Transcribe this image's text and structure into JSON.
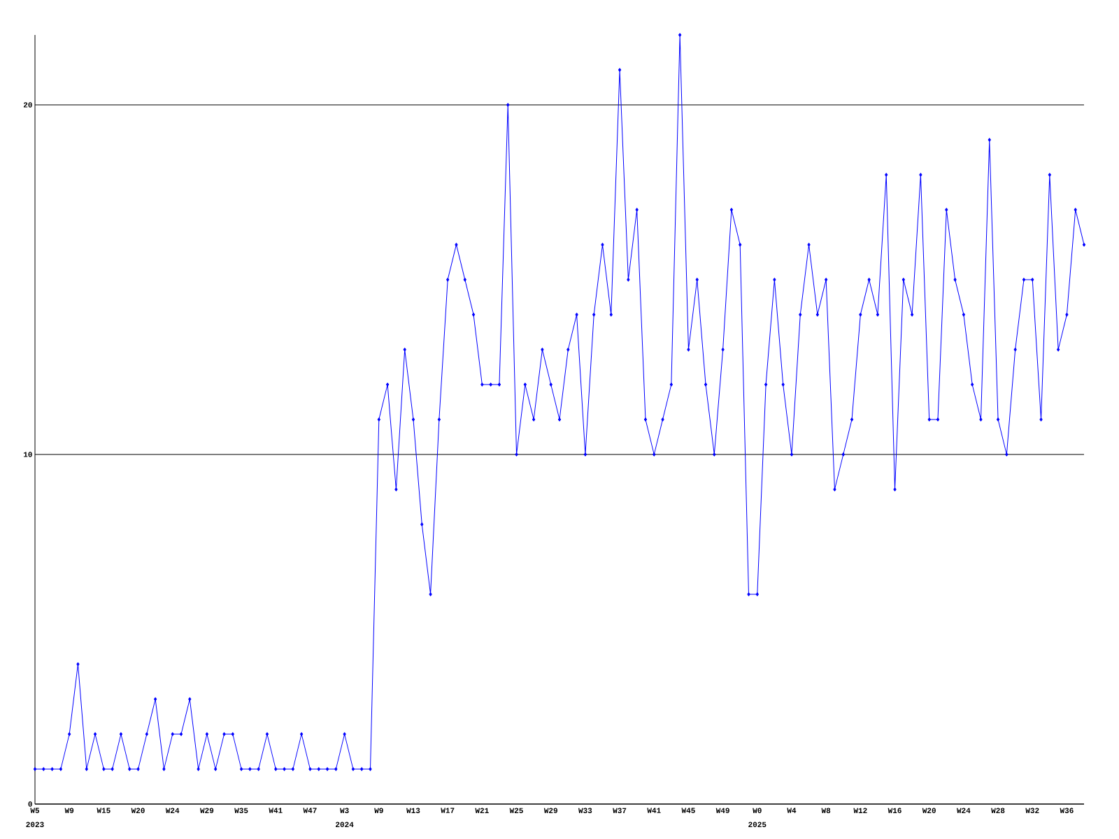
{
  "chart_data": {
    "type": "line",
    "categories": [
      "W5",
      null,
      null,
      null,
      "W9",
      null,
      null,
      null,
      "W15",
      null,
      null,
      null,
      "W20",
      null,
      null,
      null,
      "W24",
      null,
      null,
      null,
      "W29",
      null,
      null,
      null,
      "W35",
      null,
      null,
      null,
      "W41",
      null,
      null,
      null,
      "W47",
      null,
      null,
      null,
      "W3",
      null,
      null,
      null,
      "W9",
      null,
      null,
      null,
      "W13",
      null,
      null,
      null,
      "W17",
      null,
      null,
      null,
      "W21",
      null,
      null,
      null,
      "W25",
      null,
      null,
      null,
      "W29",
      null,
      null,
      null,
      "W33",
      null,
      null,
      null,
      "W37",
      null,
      null,
      null,
      "W41",
      null,
      null,
      null,
      "W45",
      null,
      null,
      null,
      "W49",
      null,
      null,
      null,
      "W0",
      null,
      null,
      null,
      "W4",
      null,
      null,
      null,
      "W8",
      null,
      null,
      null,
      "W12",
      null,
      null,
      null,
      "W16",
      null,
      null,
      null,
      "W20",
      null,
      null,
      null,
      "W24",
      null,
      null,
      null,
      "W28",
      null,
      null,
      null,
      "W32",
      null,
      null,
      null,
      "W36",
      null,
      null
    ],
    "values": [
      1,
      1,
      1,
      1,
      2,
      4,
      1,
      2,
      1,
      1,
      2,
      1,
      1,
      2,
      3,
      1,
      2,
      2,
      3,
      1,
      2,
      1,
      2,
      2,
      1,
      1,
      1,
      2,
      1,
      1,
      1,
      2,
      1,
      1,
      1,
      1,
      2,
      1,
      1,
      1,
      11,
      12,
      9,
      13,
      11,
      8,
      6,
      11,
      15,
      16,
      15,
      14,
      12,
      12,
      12,
      20,
      10,
      12,
      11,
      13,
      12,
      11,
      13,
      14,
      10,
      14,
      16,
      14,
      21,
      15,
      17,
      11,
      10,
      11,
      12,
      22,
      13,
      15,
      12,
      10,
      13,
      17,
      16,
      6,
      6,
      12,
      15,
      12,
      10,
      14,
      16,
      14,
      15,
      9,
      10,
      11,
      14,
      15,
      14,
      18,
      9,
      15,
      14,
      18,
      11,
      11,
      17,
      15,
      14,
      12,
      11,
      19,
      11,
      10,
      13,
      15,
      15,
      11,
      18,
      13,
      14,
      17,
      16
    ],
    "color": "#0000ff",
    "marker": "diamond",
    "grid": "y",
    "ylim": [
      0,
      22
    ],
    "yticks": [
      0,
      10,
      20
    ],
    "annotations": [
      "2023",
      "2024",
      "2025"
    ]
  }
}
